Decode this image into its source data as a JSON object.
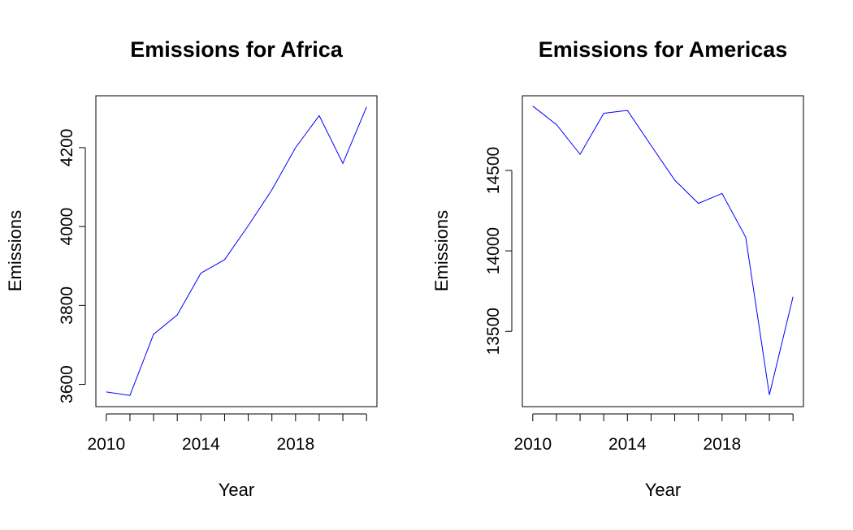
{
  "chart_data": [
    {
      "type": "line",
      "title": "Emissions for Africa",
      "xlabel": "Year",
      "ylabel": "Emissions",
      "color": "#0000ff",
      "x": [
        2010,
        2011,
        2012,
        2013,
        2014,
        2015,
        2016,
        2017,
        2018,
        2019,
        2020,
        2021
      ],
      "series": [
        {
          "values": [
            3581,
            3572,
            3727,
            3776,
            3882,
            3916,
            4002,
            4093,
            4200,
            4281,
            4160,
            4303
          ]
        }
      ],
      "xlim": [
        2009.56,
        2021.44
      ],
      "ylim": [
        3543.6,
        4331.4
      ],
      "xticks": [
        2010,
        2014,
        2018
      ],
      "xtick_labels": [
        "2010",
        "2014",
        "2018"
      ],
      "yticks": [
        3600,
        3800,
        4000,
        4200
      ],
      "ytick_labels": [
        "3600",
        "3800",
        "4000",
        "4200"
      ],
      "grid": false,
      "legend": "none"
    },
    {
      "type": "line",
      "title": "Emissions for Americas",
      "xlabel": "Year",
      "ylabel": "Emissions",
      "color": "#0000ff",
      "x": [
        2010,
        2011,
        2012,
        2013,
        2014,
        2015,
        2016,
        2017,
        2018,
        2019,
        2020,
        2021
      ],
      "series": [
        {
          "values": [
            14900,
            14785,
            14600,
            14855,
            14873,
            14655,
            14440,
            14295,
            14357,
            14085,
            13105,
            13715
          ]
        }
      ],
      "xlim": [
        2009.56,
        2021.44
      ],
      "ylim": [
        13032,
        14964
      ],
      "xticks": [
        2010,
        2014,
        2018
      ],
      "xtick_labels": [
        "2010",
        "2014",
        "2018"
      ],
      "yticks": [
        13500,
        14000,
        14500
      ],
      "ytick_labels": [
        "13500",
        "14000",
        "14500"
      ],
      "grid": false,
      "legend": "none"
    }
  ]
}
